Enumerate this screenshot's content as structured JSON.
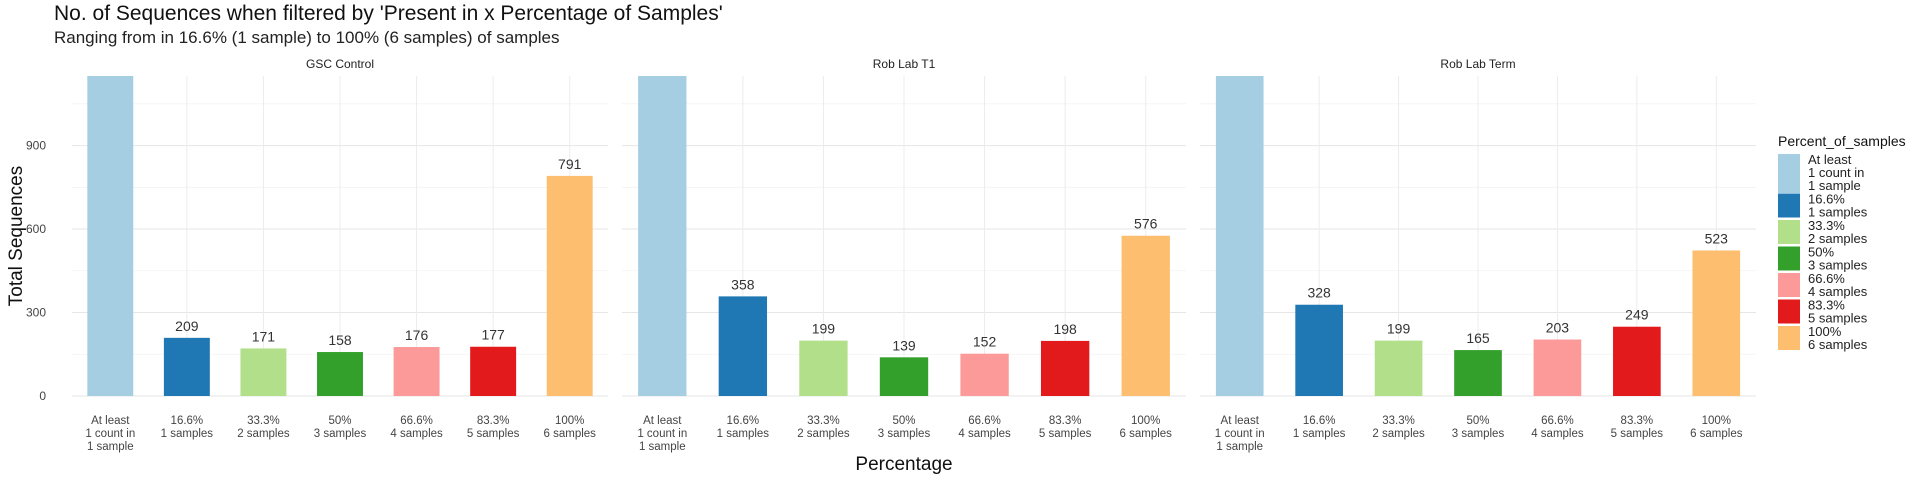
{
  "title": "No. of Sequences when filtered by 'Present in x Percentage of Samples'",
  "subtitle": "Ranging from in 16.6% (1 sample) to 100% (6 samples) of samples",
  "colors": [
    "#a6cee3",
    "#1f78b4",
    "#b2df8a",
    "#33a02c",
    "#fb9a99",
    "#e31a1c",
    "#fdbf6f"
  ],
  "chart_data": {
    "type": "bar",
    "xlabel": "Percentage",
    "ylabel": "Total Sequences",
    "ylim": [
      0,
      1150
    ],
    "yticks": [
      0,
      300,
      600,
      900
    ],
    "grid": true,
    "legend": {
      "title": "Percent_of_samples",
      "placement": "right",
      "entries": [
        [
          "At least",
          "1 count in",
          "1 sample"
        ],
        [
          "16.6%",
          "1 samples"
        ],
        [
          "33.3%",
          "2 samples"
        ],
        [
          "50%",
          "3 samples"
        ],
        [
          "66.6%",
          "4 samples"
        ],
        [
          "83.3%",
          "5 samples"
        ],
        [
          "100%",
          "6 samples"
        ]
      ]
    },
    "categories": [
      [
        "At least",
        "1 count in",
        "1 sample"
      ],
      [
        "16.6%",
        "1 samples"
      ],
      [
        "33.3%",
        "2 samples"
      ],
      [
        "50%",
        "3 samples"
      ],
      [
        "66.6%",
        "4 samples"
      ],
      [
        "83.3%",
        "5 samples"
      ],
      [
        "100%",
        "6 samples"
      ]
    ],
    "panels": [
      {
        "name": "GSC Control",
        "values": [
          1150,
          209,
          171,
          158,
          176,
          177,
          791
        ],
        "labels": [
          "",
          "209",
          "171",
          "158",
          "176",
          "177",
          "791"
        ]
      },
      {
        "name": "Rob Lab T1",
        "values": [
          1150,
          358,
          199,
          139,
          152,
          198,
          576
        ],
        "labels": [
          "",
          "358",
          "199",
          "139",
          "152",
          "198",
          "576"
        ]
      },
      {
        "name": "Rob Lab Term",
        "values": [
          1150,
          328,
          199,
          165,
          203,
          249,
          523
        ],
        "labels": [
          "",
          "328",
          "199",
          "165",
          "203",
          "249",
          "523"
        ]
      }
    ]
  }
}
